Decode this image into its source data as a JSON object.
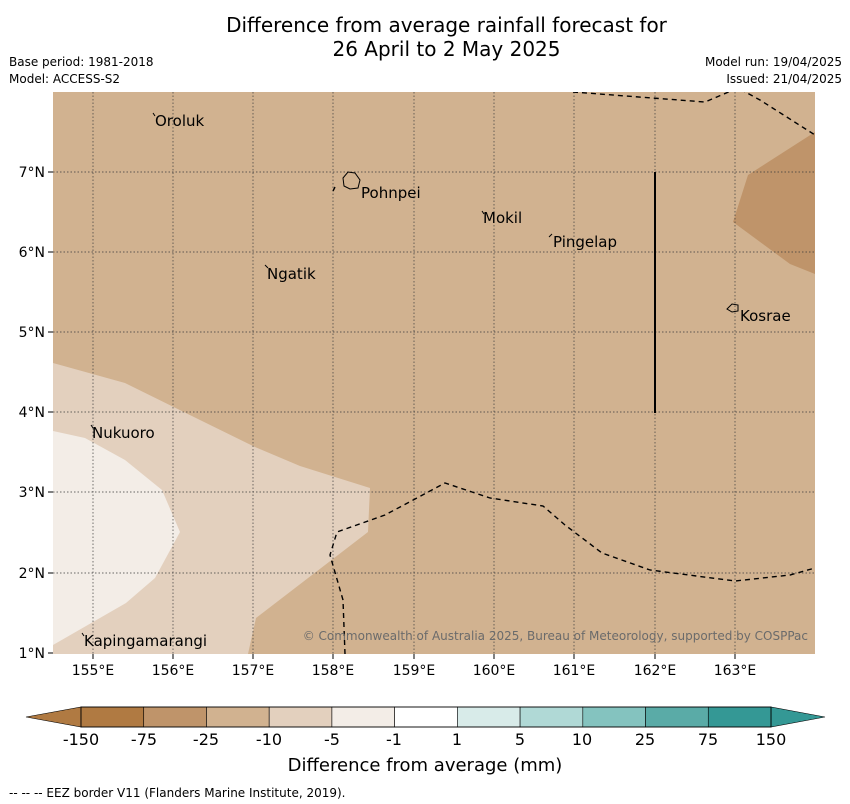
{
  "title": {
    "line1": "Difference from average rainfall forecast for",
    "line2": "26 April to 2 May 2025"
  },
  "meta_left": {
    "base_period": "Base period: 1981-2018",
    "model": "Model: ACCESS-S2"
  },
  "meta_right": {
    "model_run": "Model run: 19/04/2025",
    "issued": "Issued: 21/04/2025"
  },
  "map": {
    "lon_ticks": [
      "155°E",
      "156°E",
      "157°E",
      "158°E",
      "159°E",
      "160°E",
      "161°E",
      "162°E",
      "163°E"
    ],
    "lat_ticks": [
      "7°N",
      "6°N",
      "5°N",
      "4°N",
      "3°N",
      "2°N",
      "1°N"
    ],
    "places": [
      "Oroluk",
      "Pohnpei",
      "Mokil",
      "Pingelap",
      "Ngatik",
      "Kosrae",
      "Nukuoro",
      "Kapingamarangi"
    ],
    "copyright": "© Commonwealth of Australia 2025, Bureau of Meteorology, supported by COSPPac",
    "colors": {
      "band_minus25_minus10": "#d1b290",
      "band_minus75_minus25": "#bf946a",
      "band_minus10_minus5": "#e3d0be",
      "band_minus5_minus1": "#f3ede7"
    }
  },
  "colorbar": {
    "tick_labels": [
      "-150",
      "-75",
      "-25",
      "-10",
      "-5",
      "-1",
      "1",
      "5",
      "10",
      "25",
      "75",
      "150"
    ],
    "colors": [
      "#b07a42",
      "#bf946a",
      "#d1b290",
      "#e3d0be",
      "#f3ede7",
      "#ffffff",
      "#d8ebe9",
      "#b0d9d6",
      "#84c3bf",
      "#5aaba7",
      "#349895"
    ],
    "label": "Difference from average (mm)"
  },
  "footnote": "--  --  -- EEZ border V11 (Flanders Marine Institute, 2019)."
}
